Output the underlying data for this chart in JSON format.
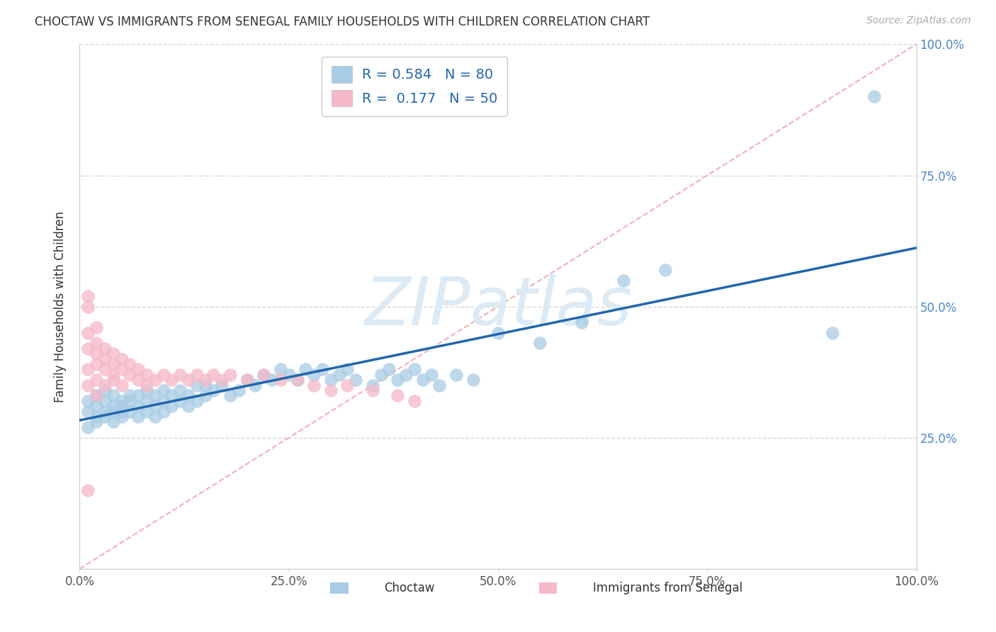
{
  "title": "CHOCTAW VS IMMIGRANTS FROM SENEGAL FAMILY HOUSEHOLDS WITH CHILDREN CORRELATION CHART",
  "source": "Source: ZipAtlas.com",
  "ylabel": "Family Households with Children",
  "xlim": [
    0,
    100
  ],
  "ylim": [
    0,
    100
  ],
  "xticks": [
    0,
    25,
    50,
    75,
    100
  ],
  "yticks": [
    0,
    25,
    50,
    75,
    100
  ],
  "xtick_labels": [
    "0.0%",
    "25.0%",
    "50.0%",
    "75.0%",
    "100.0%"
  ],
  "ytick_right_labels": [
    "",
    "25.0%",
    "50.0%",
    "75.0%",
    "100.0%"
  ],
  "choctaw_color": "#a8cce4",
  "senegal_color": "#f5b8c8",
  "choctaw_R": "0.584",
  "choctaw_N": "80",
  "senegal_R": "0.177",
  "senegal_N": "50",
  "choctaw_line_color": "#2166ac",
  "reference_line_color": "#f0b0b8",
  "watermark_text": "ZIPatlas",
  "watermark_color": "#dceaf5",
  "legend_label_1": "Choctaw",
  "legend_label_2": "Immigrants from Senegal",
  "legend_text_color": "#2166ac",
  "choctaw_x": [
    1,
    1,
    1,
    2,
    2,
    2,
    2,
    3,
    3,
    3,
    3,
    4,
    4,
    4,
    4,
    5,
    5,
    5,
    5,
    6,
    6,
    6,
    7,
    7,
    7,
    8,
    8,
    8,
    9,
    9,
    9,
    10,
    10,
    10,
    11,
    11,
    12,
    12,
    13,
    13,
    14,
    14,
    15,
    15,
    16,
    17,
    18,
    19,
    20,
    21,
    22,
    23,
    24,
    25,
    26,
    27,
    28,
    29,
    30,
    31,
    32,
    33,
    35,
    36,
    37,
    38,
    39,
    40,
    41,
    42,
    43,
    45,
    47,
    50,
    55,
    60,
    65,
    70,
    90,
    95
  ],
  "choctaw_y": [
    30,
    27,
    32,
    29,
    31,
    33,
    28,
    30,
    32,
    34,
    29,
    31,
    33,
    30,
    28,
    32,
    30,
    29,
    31,
    33,
    30,
    32,
    31,
    33,
    29,
    32,
    30,
    34,
    31,
    33,
    29,
    32,
    30,
    34,
    31,
    33,
    32,
    34,
    31,
    33,
    32,
    35,
    33,
    35,
    34,
    35,
    33,
    34,
    36,
    35,
    37,
    36,
    38,
    37,
    36,
    38,
    37,
    38,
    36,
    37,
    38,
    36,
    35,
    37,
    38,
    36,
    37,
    38,
    36,
    37,
    35,
    37,
    36,
    45,
    43,
    47,
    55,
    57,
    45,
    90
  ],
  "senegal_x": [
    1,
    1,
    1,
    1,
    1,
    1,
    2,
    2,
    2,
    2,
    2,
    2,
    3,
    3,
    3,
    3,
    4,
    4,
    4,
    4,
    5,
    5,
    5,
    6,
    6,
    7,
    7,
    8,
    8,
    9,
    10,
    11,
    12,
    13,
    14,
    15,
    16,
    17,
    18,
    20,
    22,
    24,
    26,
    28,
    30,
    32,
    35,
    38,
    40,
    1
  ],
  "senegal_y": [
    35,
    38,
    42,
    45,
    50,
    52,
    33,
    36,
    39,
    41,
    43,
    46,
    35,
    38,
    40,
    42,
    37,
    39,
    41,
    36,
    38,
    40,
    35,
    37,
    39,
    36,
    38,
    35,
    37,
    36,
    37,
    36,
    37,
    36,
    37,
    36,
    37,
    36,
    37,
    36,
    37,
    36,
    36,
    35,
    34,
    35,
    34,
    33,
    32,
    15
  ]
}
